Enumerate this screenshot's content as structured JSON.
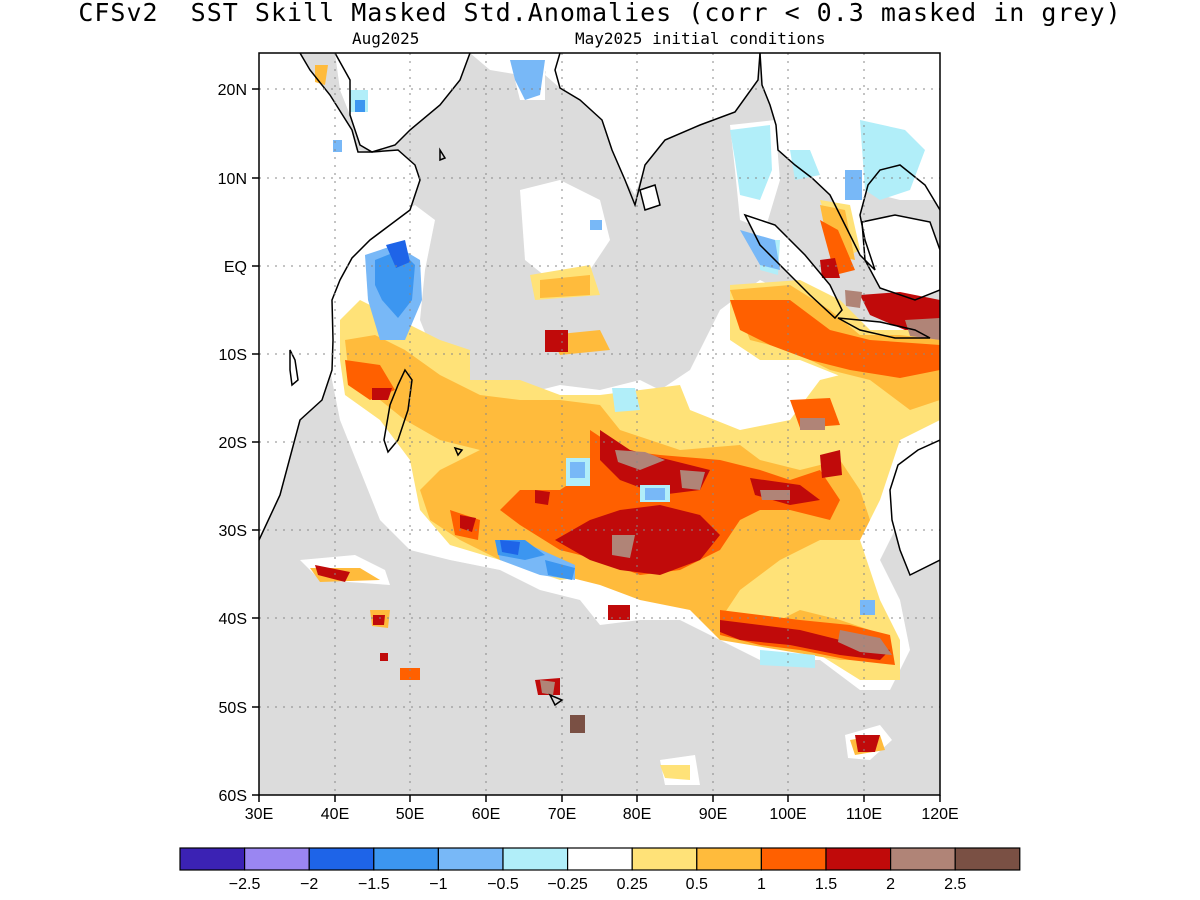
{
  "title": "CFSv2  SST Skill Masked Std.Anomalies (corr < 0.3 masked in grey)",
  "subtitle_left": "Aug2025",
  "subtitle_right": "May2025 initial conditions",
  "map": {
    "lon_range": [
      30,
      120
    ],
    "lat_range": [
      -60,
      24
    ],
    "mask_color": "#dcdcdc",
    "land_color": "#ffffff",
    "x_ticks": [
      "30E",
      "40E",
      "50E",
      "60E",
      "70E",
      "80E",
      "90E",
      "100E",
      "110E",
      "120E"
    ],
    "y_ticks": [
      "20N",
      "10N",
      "EQ",
      "10S",
      "20S",
      "30S",
      "40S",
      "50S",
      "60S"
    ]
  },
  "colorbar": {
    "colors": [
      "#3b22b4",
      "#9a86f2",
      "#1e64e8",
      "#3c96f0",
      "#78b8f7",
      "#b1eef9",
      "#ffffff",
      "#ffe278",
      "#ffbb3c",
      "#ff6000",
      "#c00a0a",
      "#b08477",
      "#7a5044"
    ],
    "labels": [
      "−2.5",
      "−2",
      "−1.5",
      "−1",
      "−0.5",
      "−0.25",
      "0.25",
      "0.5",
      "1",
      "1.5",
      "2",
      "2.5"
    ]
  }
}
